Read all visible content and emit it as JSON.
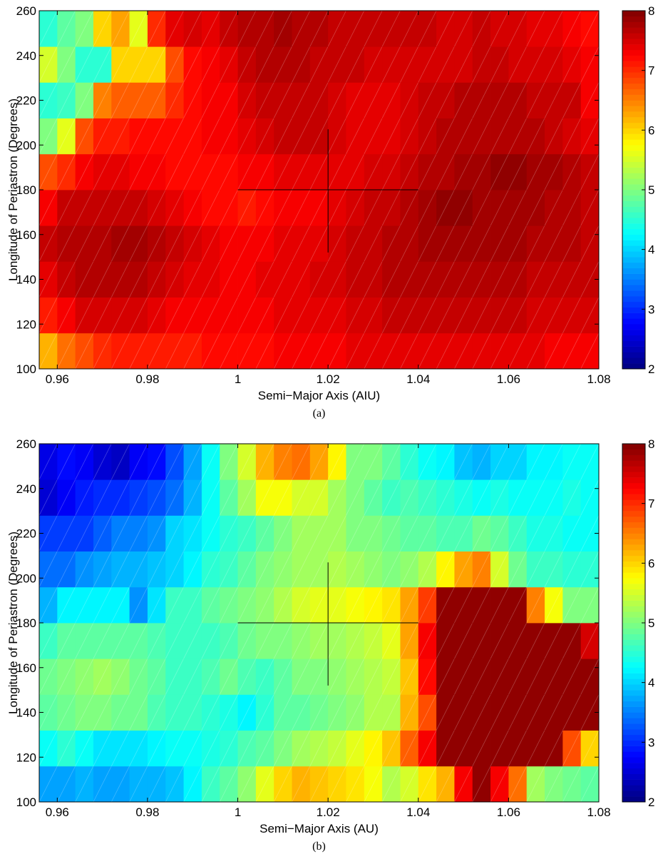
{
  "chart_data": [
    {
      "type": "heatmap",
      "xlabel": "Semi−Major Axis (AIU)",
      "ylabel": "Longitude of Periastron (Degrees)",
      "caption": "(a)",
      "colormap": "jet",
      "xlim": [
        0.956,
        1.08
      ],
      "ylim": [
        100,
        260
      ],
      "clim": [
        2,
        8
      ],
      "xticks": [
        0.96,
        0.98,
        1,
        1.02,
        1.04,
        1.06,
        1.08
      ],
      "yticks": [
        100,
        120,
        140,
        160,
        180,
        200,
        220,
        240,
        260
      ],
      "cticks": [
        2,
        3,
        4,
        5,
        6,
        7,
        8
      ],
      "crosshair": {
        "x_range": [
          1,
          1.04
        ],
        "y": 180,
        "x": 1.02,
        "y_range": [
          152,
          207
        ]
      },
      "z": [
        [
          6.2,
          6.6,
          6.8,
          7,
          7.1,
          7.1,
          7.1,
          7.1,
          7.1,
          7.2,
          7.2,
          7.2,
          7.2,
          7.3,
          7.3,
          7.3,
          7.3,
          7.4,
          7.4,
          7.4,
          7.4,
          7.4,
          7.4,
          7.4,
          7.4,
          7.4,
          7.4,
          7.4,
          7.3,
          7.3,
          7.3
        ],
        [
          7.1,
          7.3,
          7.5,
          7.5,
          7.5,
          7.5,
          7.4,
          7.3,
          7.3,
          7.3,
          7.3,
          7.3,
          7.3,
          7.4,
          7.4,
          7.4,
          7.4,
          7.5,
          7.5,
          7.6,
          7.6,
          7.6,
          7.6,
          7.6,
          7.6,
          7.6,
          7.6,
          7.5,
          7.5,
          7.5,
          7.5
        ],
        [
          7.4,
          7.6,
          7.7,
          7.7,
          7.7,
          7.7,
          7.6,
          7.5,
          7.4,
          7.4,
          7.3,
          7.3,
          7.4,
          7.4,
          7.4,
          7.5,
          7.5,
          7.6,
          7.6,
          7.7,
          7.7,
          7.7,
          7.7,
          7.7,
          7.7,
          7.7,
          7.7,
          7.6,
          7.6,
          7.6,
          7.6
        ],
        [
          7.6,
          7.7,
          7.7,
          7.7,
          7.8,
          7.8,
          7.7,
          7.6,
          7.5,
          7.4,
          7.3,
          7.3,
          7.3,
          7.4,
          7.4,
          7.4,
          7.5,
          7.6,
          7.6,
          7.7,
          7.7,
          7.8,
          7.8,
          7.8,
          7.8,
          7.8,
          7.8,
          7.7,
          7.7,
          7.7,
          7.6
        ],
        [
          7.3,
          7.6,
          7.6,
          7.6,
          7.6,
          7.6,
          7.5,
          7.4,
          7.3,
          7.2,
          7.2,
          7.1,
          7.2,
          7.3,
          7.3,
          7.3,
          7.4,
          7.5,
          7.6,
          7.6,
          7.7,
          7.8,
          7.9,
          7.9,
          7.8,
          7.8,
          7.8,
          7.8,
          7.7,
          7.7,
          7.6
        ],
        [
          6.8,
          7,
          7.3,
          7.4,
          7.4,
          7.3,
          7.3,
          7.2,
          7.2,
          7.2,
          7.2,
          7.3,
          7.3,
          7.4,
          7.4,
          7.4,
          7.4,
          7.4,
          7.5,
          7.5,
          7.6,
          7.7,
          7.7,
          7.8,
          7.8,
          7.9,
          7.9,
          7.8,
          7.8,
          7.7,
          7.6
        ],
        [
          5,
          5.6,
          6.8,
          7.1,
          7.1,
          7.2,
          7.2,
          7.2,
          7.2,
          7.3,
          7.3,
          7.4,
          7.5,
          7.6,
          7.6,
          7.6,
          7.5,
          7.4,
          7.4,
          7.4,
          7.5,
          7.6,
          7.7,
          7.7,
          7.7,
          7.7,
          7.7,
          7.7,
          7.6,
          7.5,
          7.4
        ],
        [
          4.5,
          4.6,
          5,
          6.5,
          6.7,
          6.7,
          6.7,
          7,
          7.2,
          7.3,
          7.3,
          7.5,
          7.6,
          7.6,
          7.6,
          7.6,
          7.5,
          7.4,
          7.4,
          7.4,
          7.5,
          7.6,
          7.6,
          7.7,
          7.7,
          7.7,
          7.7,
          7.6,
          7.6,
          7.6,
          7.3
        ],
        [
          5.5,
          5,
          4.5,
          4.5,
          6,
          6,
          6,
          6.8,
          7.2,
          7.3,
          7.4,
          7.6,
          7.7,
          7.7,
          7.7,
          7.6,
          7.6,
          7.6,
          7.5,
          7.5,
          7.5,
          7.5,
          7.5,
          7.5,
          7.6,
          7.6,
          7.5,
          7.5,
          7.5,
          7.4,
          7.3
        ],
        [
          4.5,
          4.8,
          5,
          6,
          6.3,
          5.6,
          7,
          7.4,
          7.5,
          7.4,
          7.6,
          7.7,
          7.7,
          7.8,
          7.7,
          7.7,
          7.6,
          7.6,
          7.6,
          7.6,
          7.6,
          7.6,
          7.5,
          7.5,
          7.6,
          7.5,
          7.5,
          7.4,
          7.4,
          7.3,
          7.2
        ]
      ]
    },
    {
      "type": "heatmap",
      "xlabel": "Semi−Major Axis (AU)",
      "ylabel": "Longitude of Periastron (Degrees)",
      "caption": "(b)",
      "colormap": "jet",
      "xlim": [
        0.956,
        1.08
      ],
      "ylim": [
        100,
        260
      ],
      "clim": [
        2,
        8
      ],
      "xticks": [
        0.96,
        0.98,
        1,
        1.02,
        1.04,
        1.06,
        1.08
      ],
      "yticks": [
        100,
        120,
        140,
        160,
        180,
        200,
        220,
        240,
        260
      ],
      "cticks": [
        2,
        3,
        4,
        5,
        6,
        7,
        8
      ],
      "crosshair": {
        "x_range": [
          1,
          1.04
        ],
        "y": 180,
        "x": 1.02,
        "y_range": [
          152,
          207
        ]
      },
      "z": [
        [
          3.7,
          3.7,
          3.8,
          3.7,
          3.7,
          3.8,
          3.8,
          3.9,
          4.2,
          4.6,
          4.8,
          5.1,
          5.6,
          6,
          6.2,
          6.1,
          6,
          5.9,
          5.7,
          5.3,
          5.5,
          5.9,
          6.2,
          7.3,
          7.9,
          7.3,
          6.6,
          5.2,
          5,
          4.9,
          4.8
        ],
        [
          4.3,
          4.5,
          4.3,
          4.1,
          4.1,
          4.1,
          4.2,
          4.3,
          4.3,
          4.4,
          4.5,
          4.7,
          4.8,
          5,
          5.2,
          5.3,
          5.4,
          5.6,
          5.8,
          6.1,
          6.7,
          7.3,
          7.9,
          7.9,
          7.9,
          7.9,
          7.9,
          7.9,
          7.9,
          6.8,
          6
        ],
        [
          4.8,
          4.9,
          5,
          5,
          4.9,
          4.9,
          4.7,
          4.6,
          4.6,
          4.5,
          4.4,
          4.2,
          4.5,
          4.8,
          4.8,
          4.9,
          5,
          5.1,
          5.3,
          5.3,
          6.2,
          6.8,
          7.9,
          7.9,
          7.9,
          7.9,
          7.9,
          7.9,
          7.9,
          7.9,
          7.9
        ],
        [
          4.9,
          5,
          5.1,
          5.2,
          5.1,
          4.9,
          4.8,
          4.6,
          4.6,
          4.7,
          4.9,
          4.7,
          4.6,
          4.8,
          5,
          5,
          5.1,
          5.2,
          5.3,
          5.4,
          6.1,
          7.2,
          7.9,
          7.9,
          7.9,
          7.9,
          7.9,
          7.9,
          7.9,
          7.9,
          7.9
        ],
        [
          4.6,
          4.8,
          4.8,
          4.8,
          4.8,
          4.8,
          4.7,
          4.6,
          4.6,
          4.6,
          4.7,
          4.9,
          5,
          5,
          5.1,
          5.2,
          5.2,
          5.3,
          5.4,
          5.6,
          6.3,
          7.3,
          7.9,
          7.9,
          7.9,
          7.9,
          7.9,
          7.9,
          7.9,
          7.9,
          7.5
        ],
        [
          3.8,
          4.2,
          4.2,
          4.2,
          4.2,
          3.6,
          4.1,
          4.6,
          4.6,
          4.8,
          4.9,
          5,
          5.1,
          5.3,
          5.5,
          5.6,
          5.6,
          5.7,
          5.8,
          5.9,
          6.3,
          6.9,
          7.9,
          7.9,
          7.9,
          7.9,
          7.9,
          6.5,
          5.7,
          5,
          5
        ],
        [
          3.4,
          3.4,
          3.6,
          3.7,
          3.8,
          3.8,
          3.9,
          4,
          4.2,
          4.5,
          4.6,
          4.8,
          5,
          5.1,
          5.2,
          5.2,
          5.3,
          5.2,
          5.1,
          5,
          5.1,
          5.3,
          5.8,
          6.3,
          6.5,
          5.5,
          4.9,
          4.6,
          4.6,
          4.5,
          4.5
        ],
        [
          3.1,
          3.1,
          3.1,
          3.3,
          3.5,
          3.5,
          3.6,
          4,
          4.1,
          4.3,
          4.5,
          4.6,
          4.8,
          5,
          5.2,
          5.2,
          5.2,
          5,
          5,
          4.9,
          4.8,
          4.8,
          4.7,
          4.7,
          4.9,
          4.8,
          4.6,
          4.4,
          4.4,
          4.3,
          4.3
        ],
        [
          2.5,
          2.7,
          2.9,
          3,
          3,
          3.1,
          3.2,
          3.4,
          3.8,
          4.3,
          4.8,
          5.2,
          5.7,
          5.7,
          5.5,
          5.5,
          5.2,
          5,
          4.8,
          4.6,
          4.7,
          4.6,
          4.5,
          4.4,
          4.3,
          4.4,
          4.3,
          4.3,
          4.3,
          4.4,
          4.3
        ],
        [
          2.6,
          2.8,
          2.7,
          2.5,
          2.4,
          2.7,
          2.8,
          3.2,
          3.7,
          4.3,
          5,
          5.5,
          6.2,
          6.5,
          6.6,
          6.3,
          5.8,
          5,
          5,
          4.8,
          4.5,
          4.3,
          4.2,
          3.9,
          3.8,
          4,
          4,
          4.2,
          4.2,
          4.3,
          4.3
        ]
      ]
    }
  ]
}
